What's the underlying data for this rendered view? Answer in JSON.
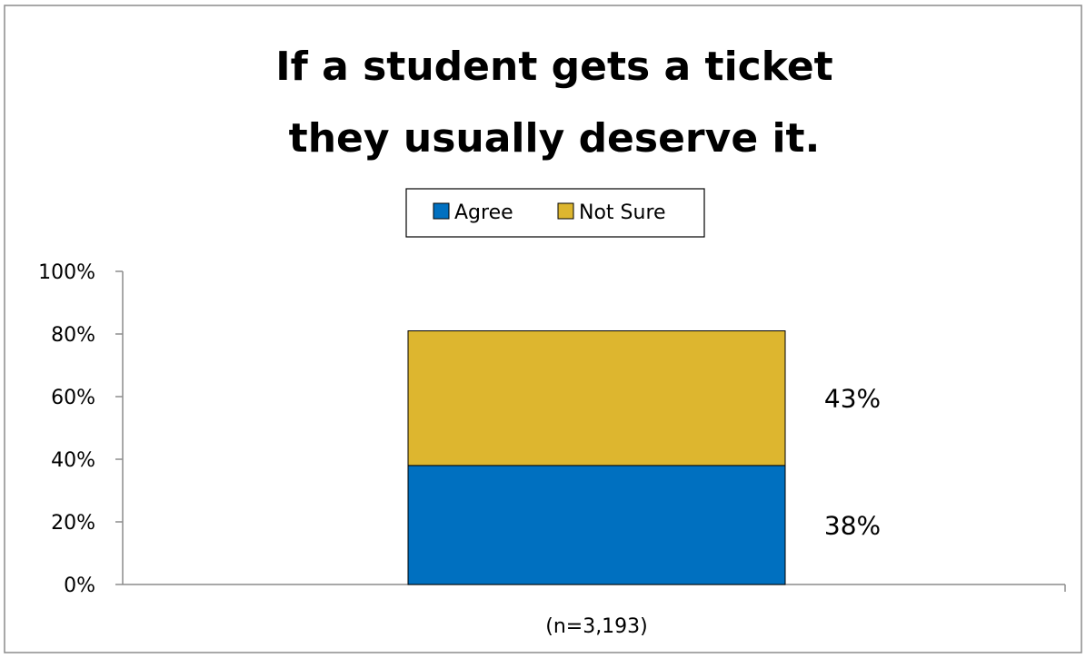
{
  "chart_data": {
    "type": "bar",
    "stacked": true,
    "title_lines": [
      "If a student gets a ticket",
      "they usually deserve it."
    ],
    "categories": [
      "(n=3,193)"
    ],
    "series": [
      {
        "name": "Agree",
        "values": [
          38
        ],
        "label": "38%",
        "color": "#0070C0"
      },
      {
        "name": "Not Sure",
        "values": [
          43
        ],
        "label": "43%",
        "color": "#DDB62F"
      }
    ],
    "ylim": [
      0,
      100
    ],
    "yticks": [
      "0%",
      "20%",
      "40%",
      "60%",
      "80%",
      "100%"
    ],
    "ytick_values": [
      0,
      20,
      40,
      60,
      80,
      100
    ],
    "legend_position": "top",
    "grid": false,
    "xlabel": "",
    "ylabel": ""
  }
}
